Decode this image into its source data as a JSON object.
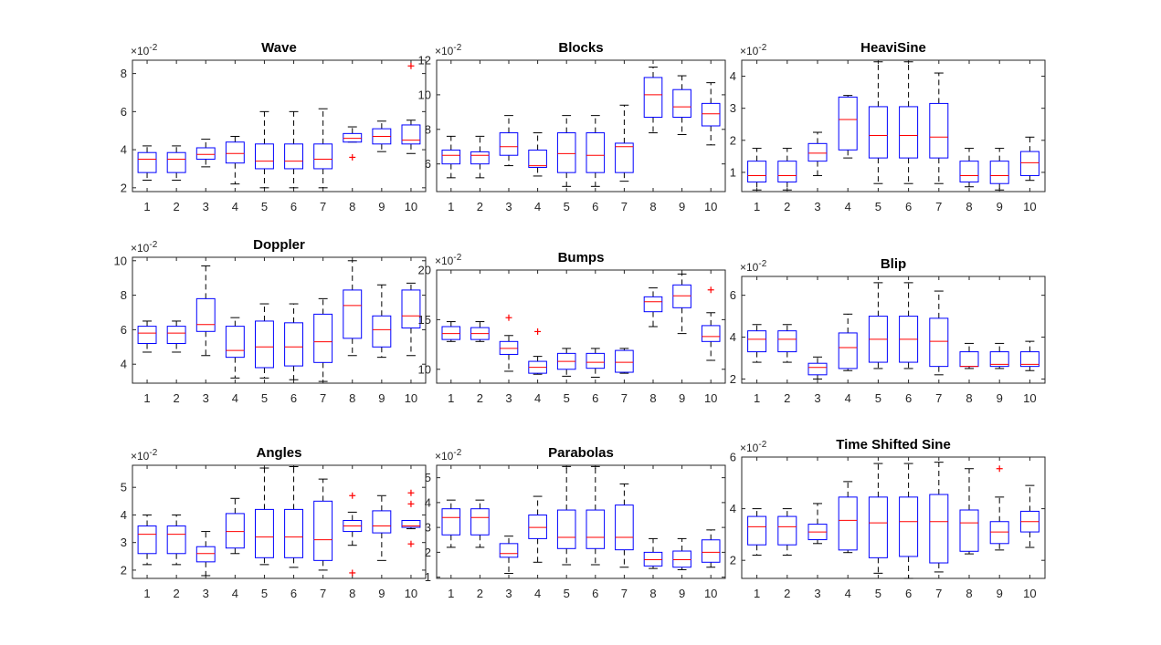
{
  "figure": {
    "exponent_label": "×10",
    "exponent_power": "-2",
    "colors": {
      "box": "#0000ff",
      "median": "#ff0000",
      "whisker": "#000000",
      "outlier": "#ff0000",
      "axis": "#262626"
    }
  },
  "chart_data": [
    {
      "type": "box",
      "title": "Wave",
      "categories": [
        "1",
        "2",
        "3",
        "4",
        "5",
        "6",
        "7",
        "8",
        "9",
        "10"
      ],
      "ylim": [
        1.8,
        8.7
      ],
      "yticks": [
        2,
        4,
        6,
        8
      ],
      "ytick_labels": [
        "2",
        "4",
        "6",
        "8"
      ],
      "boxes": [
        {
          "whislo": 2.4,
          "q1": 2.8,
          "med": 3.5,
          "q3": 3.85,
          "whishi": 4.2,
          "fliers": []
        },
        {
          "whislo": 2.4,
          "q1": 2.8,
          "med": 3.5,
          "q3": 3.85,
          "whishi": 4.2,
          "fliers": []
        },
        {
          "whislo": 3.1,
          "q1": 3.5,
          "med": 3.75,
          "q3": 4.1,
          "whishi": 4.55,
          "fliers": []
        },
        {
          "whislo": 2.2,
          "q1": 3.3,
          "med": 3.8,
          "q3": 4.4,
          "whishi": 4.7,
          "fliers": []
        },
        {
          "whislo": 2.0,
          "q1": 3.0,
          "med": 3.4,
          "q3": 4.3,
          "whishi": 6.0,
          "fliers": []
        },
        {
          "whislo": 2.0,
          "q1": 3.0,
          "med": 3.4,
          "q3": 4.3,
          "whishi": 6.0,
          "fliers": []
        },
        {
          "whislo": 2.0,
          "q1": 3.0,
          "med": 3.5,
          "q3": 4.3,
          "whishi": 6.15,
          "fliers": []
        },
        {
          "whislo": 4.4,
          "q1": 4.4,
          "med": 4.6,
          "q3": 4.85,
          "whishi": 5.2,
          "fliers": [
            3.6
          ]
        },
        {
          "whislo": 3.9,
          "q1": 4.3,
          "med": 4.7,
          "q3": 5.1,
          "whishi": 5.5,
          "fliers": []
        },
        {
          "whislo": 3.8,
          "q1": 4.3,
          "med": 4.5,
          "q3": 5.3,
          "whishi": 5.55,
          "fliers": [
            8.4
          ]
        }
      ]
    },
    {
      "type": "box",
      "title": "Blocks",
      "categories": [
        "1",
        "2",
        "3",
        "4",
        "5",
        "6",
        "7",
        "8",
        "9",
        "10"
      ],
      "ylim": [
        4.4,
        12
      ],
      "yticks": [
        6,
        8,
        10,
        12
      ],
      "ytick_labels": [
        "6",
        "8",
        "10",
        "12"
      ],
      "boxes": [
        {
          "whislo": 5.2,
          "q1": 6.0,
          "med": 6.5,
          "q3": 6.8,
          "whishi": 7.6,
          "fliers": []
        },
        {
          "whislo": 5.2,
          "q1": 6.0,
          "med": 6.5,
          "q3": 6.7,
          "whishi": 7.6,
          "fliers": []
        },
        {
          "whislo": 5.9,
          "q1": 6.5,
          "med": 7.0,
          "q3": 7.8,
          "whishi": 8.8,
          "fliers": []
        },
        {
          "whislo": 5.3,
          "q1": 5.8,
          "med": 5.9,
          "q3": 6.8,
          "whishi": 7.8,
          "fliers": []
        },
        {
          "whislo": 4.7,
          "q1": 5.5,
          "med": 6.6,
          "q3": 7.8,
          "whishi": 8.8,
          "fliers": []
        },
        {
          "whislo": 4.7,
          "q1": 5.5,
          "med": 6.5,
          "q3": 7.8,
          "whishi": 8.8,
          "fliers": []
        },
        {
          "whislo": 5.0,
          "q1": 5.5,
          "med": 7.0,
          "q3": 7.2,
          "whishi": 9.4,
          "fliers": []
        },
        {
          "whislo": 7.8,
          "q1": 8.7,
          "med": 10.0,
          "q3": 11.0,
          "whishi": 11.6,
          "fliers": []
        },
        {
          "whislo": 7.7,
          "q1": 8.7,
          "med": 9.3,
          "q3": 10.3,
          "whishi": 11.1,
          "fliers": []
        },
        {
          "whislo": 7.1,
          "q1": 8.2,
          "med": 8.9,
          "q3": 9.5,
          "whishi": 10.7,
          "fliers": []
        }
      ]
    },
    {
      "type": "box",
      "title": "HeaviSine",
      "categories": [
        "1",
        "2",
        "3",
        "4",
        "5",
        "6",
        "7",
        "8",
        "9",
        "10"
      ],
      "ylim": [
        0.4,
        4.5
      ],
      "yticks": [
        1,
        2,
        3,
        4
      ],
      "ytick_labels": [
        "1",
        "2",
        "3",
        "4"
      ],
      "boxes": [
        {
          "whislo": 0.45,
          "q1": 0.7,
          "med": 0.9,
          "q3": 1.35,
          "whishi": 1.75,
          "fliers": []
        },
        {
          "whislo": 0.45,
          "q1": 0.7,
          "med": 0.9,
          "q3": 1.35,
          "whishi": 1.75,
          "fliers": []
        },
        {
          "whislo": 0.9,
          "q1": 1.35,
          "med": 1.6,
          "q3": 1.9,
          "whishi": 2.25,
          "fliers": []
        },
        {
          "whislo": 1.45,
          "q1": 1.7,
          "med": 2.65,
          "q3": 3.35,
          "whishi": 3.4,
          "fliers": []
        },
        {
          "whislo": 0.65,
          "q1": 1.45,
          "med": 2.15,
          "q3": 3.05,
          "whishi": 4.45,
          "fliers": []
        },
        {
          "whislo": 0.65,
          "q1": 1.45,
          "med": 2.15,
          "q3": 3.05,
          "whishi": 4.45,
          "fliers": []
        },
        {
          "whislo": 0.65,
          "q1": 1.45,
          "med": 2.1,
          "q3": 3.15,
          "whishi": 4.1,
          "fliers": []
        },
        {
          "whislo": 0.55,
          "q1": 0.7,
          "med": 0.9,
          "q3": 1.35,
          "whishi": 1.75,
          "fliers": []
        },
        {
          "whislo": 0.45,
          "q1": 0.65,
          "med": 0.9,
          "q3": 1.35,
          "whishi": 1.75,
          "fliers": []
        },
        {
          "whislo": 0.75,
          "q1": 0.9,
          "med": 1.3,
          "q3": 1.65,
          "whishi": 2.1,
          "fliers": []
        }
      ]
    },
    {
      "type": "box",
      "title": "Doppler",
      "categories": [
        "1",
        "2",
        "3",
        "4",
        "5",
        "6",
        "7",
        "8",
        "9",
        "10"
      ],
      "ylim": [
        2.9,
        10.2
      ],
      "yticks": [
        4,
        6,
        8,
        10
      ],
      "ytick_labels": [
        "4",
        "6",
        "8",
        "10"
      ],
      "boxes": [
        {
          "whislo": 4.7,
          "q1": 5.2,
          "med": 5.8,
          "q3": 6.2,
          "whishi": 6.5,
          "fliers": []
        },
        {
          "whislo": 4.7,
          "q1": 5.2,
          "med": 5.8,
          "q3": 6.2,
          "whishi": 6.5,
          "fliers": []
        },
        {
          "whislo": 4.5,
          "q1": 5.9,
          "med": 6.3,
          "q3": 7.8,
          "whishi": 9.7,
          "fliers": []
        },
        {
          "whislo": 3.2,
          "q1": 4.4,
          "med": 4.8,
          "q3": 6.2,
          "whishi": 6.7,
          "fliers": []
        },
        {
          "whislo": 3.2,
          "q1": 3.8,
          "med": 5.0,
          "q3": 6.5,
          "whishi": 7.5,
          "fliers": []
        },
        {
          "whislo": 3.1,
          "q1": 3.9,
          "med": 5.0,
          "q3": 6.4,
          "whishi": 7.5,
          "fliers": []
        },
        {
          "whislo": 3.0,
          "q1": 4.1,
          "med": 5.3,
          "q3": 6.9,
          "whishi": 7.8,
          "fliers": []
        },
        {
          "whislo": 4.5,
          "q1": 5.5,
          "med": 7.4,
          "q3": 8.3,
          "whishi": 10.0,
          "fliers": []
        },
        {
          "whislo": 4.4,
          "q1": 5.0,
          "med": 6.0,
          "q3": 6.8,
          "whishi": 8.6,
          "fliers": []
        },
        {
          "whislo": 4.5,
          "q1": 6.1,
          "med": 6.8,
          "q3": 8.3,
          "whishi": 8.7,
          "fliers": []
        }
      ]
    },
    {
      "type": "box",
      "title": "Bumps",
      "categories": [
        "1",
        "2",
        "3",
        "4",
        "5",
        "6",
        "7",
        "8",
        "9",
        "10"
      ],
      "ylim": [
        8.6,
        20
      ],
      "yticks": [
        10,
        15,
        20
      ],
      "ytick_labels": [
        "10",
        "15",
        "20"
      ],
      "boxes": [
        {
          "whislo": 12.8,
          "q1": 13.0,
          "med": 13.6,
          "q3": 14.3,
          "whishi": 14.8,
          "fliers": []
        },
        {
          "whislo": 12.8,
          "q1": 13.0,
          "med": 13.6,
          "q3": 14.2,
          "whishi": 14.8,
          "fliers": []
        },
        {
          "whislo": 9.8,
          "q1": 11.5,
          "med": 12.1,
          "q3": 12.8,
          "whishi": 13.4,
          "fliers": [
            15.2
          ]
        },
        {
          "whislo": 9.5,
          "q1": 9.6,
          "med": 10.2,
          "q3": 10.8,
          "whishi": 11.3,
          "fliers": [
            13.8
          ]
        },
        {
          "whislo": 9.3,
          "q1": 10.0,
          "med": 10.8,
          "q3": 11.6,
          "whishi": 12.1,
          "fliers": []
        },
        {
          "whislo": 9.2,
          "q1": 10.1,
          "med": 10.7,
          "q3": 11.6,
          "whishi": 12.1,
          "fliers": []
        },
        {
          "whislo": 9.6,
          "q1": 9.7,
          "med": 10.7,
          "q3": 11.9,
          "whishi": 12.1,
          "fliers": []
        },
        {
          "whislo": 14.3,
          "q1": 15.8,
          "med": 16.8,
          "q3": 17.3,
          "whishi": 18.2,
          "fliers": []
        },
        {
          "whislo": 13.6,
          "q1": 16.2,
          "med": 17.4,
          "q3": 18.5,
          "whishi": 19.6,
          "fliers": []
        },
        {
          "whislo": 10.9,
          "q1": 12.8,
          "med": 13.3,
          "q3": 14.4,
          "whishi": 15.7,
          "fliers": [
            18.0
          ]
        }
      ]
    },
    {
      "type": "box",
      "title": "Blip",
      "categories": [
        "1",
        "2",
        "3",
        "4",
        "5",
        "6",
        "7",
        "8",
        "9",
        "10"
      ],
      "ylim": [
        1.8,
        6.9
      ],
      "yticks": [
        2,
        4,
        6
      ],
      "ytick_labels": [
        "2",
        "4",
        "6"
      ],
      "boxes": [
        {
          "whislo": 2.8,
          "q1": 3.3,
          "med": 3.9,
          "q3": 4.3,
          "whishi": 4.6,
          "fliers": []
        },
        {
          "whislo": 2.8,
          "q1": 3.3,
          "med": 3.9,
          "q3": 4.3,
          "whishi": 4.6,
          "fliers": []
        },
        {
          "whislo": 2.0,
          "q1": 2.2,
          "med": 2.55,
          "q3": 2.75,
          "whishi": 3.05,
          "fliers": []
        },
        {
          "whislo": 2.4,
          "q1": 2.5,
          "med": 3.5,
          "q3": 4.2,
          "whishi": 5.1,
          "fliers": []
        },
        {
          "whislo": 2.5,
          "q1": 2.8,
          "med": 3.9,
          "q3": 5.0,
          "whishi": 6.6,
          "fliers": []
        },
        {
          "whislo": 2.5,
          "q1": 2.8,
          "med": 3.9,
          "q3": 5.0,
          "whishi": 6.6,
          "fliers": []
        },
        {
          "whislo": 2.2,
          "q1": 2.6,
          "med": 3.8,
          "q3": 4.9,
          "whishi": 6.2,
          "fliers": []
        },
        {
          "whislo": 2.5,
          "q1": 2.6,
          "med": 2.6,
          "q3": 3.3,
          "whishi": 3.7,
          "fliers": []
        },
        {
          "whislo": 2.5,
          "q1": 2.6,
          "med": 2.7,
          "q3": 3.3,
          "whishi": 3.7,
          "fliers": []
        },
        {
          "whislo": 2.4,
          "q1": 2.6,
          "med": 2.7,
          "q3": 3.3,
          "whishi": 3.8,
          "fliers": []
        }
      ]
    },
    {
      "type": "box",
      "title": "Angles",
      "categories": [
        "1",
        "2",
        "3",
        "4",
        "5",
        "6",
        "7",
        "8",
        "9",
        "10"
      ],
      "ylim": [
        1.7,
        5.8
      ],
      "yticks": [
        2,
        3,
        4,
        5
      ],
      "ytick_labels": [
        "2",
        "3",
        "4",
        "5"
      ],
      "boxes": [
        {
          "whislo": 2.2,
          "q1": 2.6,
          "med": 3.3,
          "q3": 3.6,
          "whishi": 4.0,
          "fliers": []
        },
        {
          "whislo": 2.2,
          "q1": 2.6,
          "med": 3.3,
          "q3": 3.6,
          "whishi": 4.0,
          "fliers": []
        },
        {
          "whislo": 1.8,
          "q1": 2.3,
          "med": 2.6,
          "q3": 2.85,
          "whishi": 3.4,
          "fliers": []
        },
        {
          "whislo": 2.6,
          "q1": 2.8,
          "med": 3.4,
          "q3": 4.05,
          "whishi": 4.6,
          "fliers": []
        },
        {
          "whislo": 2.2,
          "q1": 2.45,
          "med": 3.2,
          "q3": 4.2,
          "whishi": 5.7,
          "fliers": []
        },
        {
          "whislo": 2.1,
          "q1": 2.45,
          "med": 3.2,
          "q3": 4.2,
          "whishi": 5.75,
          "fliers": []
        },
        {
          "whislo": 2.0,
          "q1": 2.35,
          "med": 3.1,
          "q3": 4.5,
          "whishi": 5.3,
          "fliers": []
        },
        {
          "whislo": 2.9,
          "q1": 3.4,
          "med": 3.6,
          "q3": 3.8,
          "whishi": 4.1,
          "fliers": [
            4.7,
            1.9
          ]
        },
        {
          "whislo": 2.35,
          "q1": 3.35,
          "med": 3.6,
          "q3": 4.15,
          "whishi": 4.7,
          "fliers": []
        },
        {
          "whislo": 3.5,
          "q1": 3.55,
          "med": 3.6,
          "q3": 3.8,
          "whishi": 3.8,
          "fliers": [
            4.8,
            4.4,
            2.95
          ]
        }
      ]
    },
    {
      "type": "box",
      "title": "Parabolas",
      "categories": [
        "1",
        "2",
        "3",
        "4",
        "5",
        "6",
        "7",
        "8",
        "9",
        "10"
      ],
      "ylim": [
        0.95,
        5.5
      ],
      "yticks": [
        1,
        2,
        3,
        4,
        5
      ],
      "ytick_labels": [
        "1",
        "2",
        "3",
        "4",
        "5"
      ],
      "boxes": [
        {
          "whislo": 2.2,
          "q1": 2.7,
          "med": 3.4,
          "q3": 3.75,
          "whishi": 4.1,
          "fliers": []
        },
        {
          "whislo": 2.2,
          "q1": 2.7,
          "med": 3.4,
          "q3": 3.75,
          "whishi": 4.1,
          "fliers": []
        },
        {
          "whislo": 1.15,
          "q1": 1.8,
          "med": 1.95,
          "q3": 2.35,
          "whishi": 2.65,
          "fliers": []
        },
        {
          "whislo": 1.6,
          "q1": 2.55,
          "med": 3.0,
          "q3": 3.5,
          "whishi": 4.25,
          "fliers": []
        },
        {
          "whislo": 1.5,
          "q1": 2.15,
          "med": 2.6,
          "q3": 3.7,
          "whishi": 5.45,
          "fliers": []
        },
        {
          "whislo": 1.5,
          "q1": 2.15,
          "med": 2.6,
          "q3": 3.7,
          "whishi": 5.45,
          "fliers": []
        },
        {
          "whislo": 1.4,
          "q1": 2.1,
          "med": 2.6,
          "q3": 3.9,
          "whishi": 4.75,
          "fliers": []
        },
        {
          "whislo": 1.35,
          "q1": 1.45,
          "med": 1.7,
          "q3": 2.0,
          "whishi": 2.55,
          "fliers": []
        },
        {
          "whislo": 1.3,
          "q1": 1.4,
          "med": 1.7,
          "q3": 2.05,
          "whishi": 2.55,
          "fliers": []
        },
        {
          "whislo": 1.4,
          "q1": 1.6,
          "med": 2.0,
          "q3": 2.5,
          "whishi": 2.9,
          "fliers": []
        }
      ]
    },
    {
      "type": "box",
      "title": "Time Shifted Sine",
      "categories": [
        "1",
        "2",
        "3",
        "4",
        "5",
        "6",
        "7",
        "8",
        "9",
        "10"
      ],
      "ylim": [
        1.3,
        6.0
      ],
      "yticks": [
        2,
        4,
        6
      ],
      "ytick_labels": [
        "2",
        "4",
        "6"
      ],
      "boxes": [
        {
          "whislo": 2.2,
          "q1": 2.6,
          "med": 3.3,
          "q3": 3.7,
          "whishi": 4.0,
          "fliers": []
        },
        {
          "whislo": 2.2,
          "q1": 2.6,
          "med": 3.3,
          "q3": 3.7,
          "whishi": 4.0,
          "fliers": []
        },
        {
          "whislo": 2.65,
          "q1": 2.8,
          "med": 3.1,
          "q3": 3.4,
          "whishi": 4.2,
          "fliers": []
        },
        {
          "whislo": 2.3,
          "q1": 2.4,
          "med": 3.55,
          "q3": 4.45,
          "whishi": 5.05,
          "fliers": []
        },
        {
          "whislo": 1.5,
          "q1": 2.1,
          "med": 3.45,
          "q3": 4.45,
          "whishi": 5.75,
          "fliers": []
        },
        {
          "whislo": 1.3,
          "q1": 2.15,
          "med": 3.5,
          "q3": 4.45,
          "whishi": 5.75,
          "fliers": []
        },
        {
          "whislo": 1.55,
          "q1": 1.9,
          "med": 3.5,
          "q3": 4.55,
          "whishi": 5.8,
          "fliers": []
        },
        {
          "whislo": 2.25,
          "q1": 2.35,
          "med": 3.45,
          "q3": 3.95,
          "whishi": 5.55,
          "fliers": []
        },
        {
          "whislo": 2.4,
          "q1": 2.65,
          "med": 3.1,
          "q3": 3.5,
          "whishi": 4.45,
          "fliers": [
            5.55
          ]
        },
        {
          "whislo": 2.5,
          "q1": 3.1,
          "med": 3.5,
          "q3": 3.9,
          "whishi": 4.9,
          "fliers": []
        }
      ]
    }
  ]
}
